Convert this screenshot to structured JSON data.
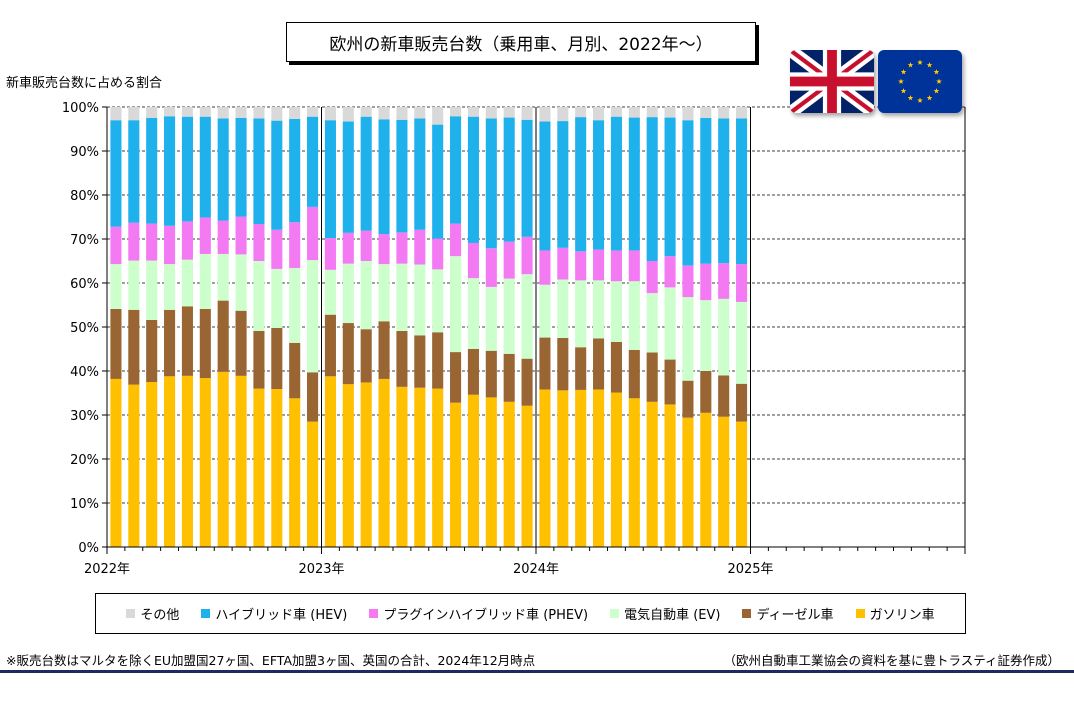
{
  "title": "欧州の新車販売台数（乗用車、月別、2022年～）",
  "ylabel": "新車販売台数に占める割合",
  "flags": {
    "left": "uk-flag",
    "right": "eu-flag"
  },
  "footnote_left": "※販売台数はマルタを除くEU加盟国27ヶ国、EFTA加盟3ヶ国、英国の合計、2024年12月時点",
  "footnote_right": "（欧州自動車工業協会の資料を基に豊トラスティ証券作成）",
  "legend": [
    {
      "name": "その他",
      "color": "#d9d9d9"
    },
    {
      "name": "ハイブリッド車 (HEV)",
      "color": "#1fb1ec"
    },
    {
      "name": "プラグインハイブリッド車 (PHEV)",
      "color": "#f47af4"
    },
    {
      "name": "電気自動車 (EV)",
      "color": "#ccffcc"
    },
    {
      "name": "ディーゼル車",
      "color": "#996633"
    },
    {
      "name": "ガソリン車",
      "color": "#ffc000"
    }
  ],
  "chart_data": {
    "type": "bar",
    "stacked": true,
    "title": "欧州の新車販売台数（乗用車、月別、2022年～）",
    "ylabel": "新車販売台数に占める割合",
    "xlabel": "",
    "ylim": [
      0,
      100
    ],
    "y_ticks": [
      "0%",
      "10%",
      "20%",
      "30%",
      "40%",
      "50%",
      "60%",
      "70%",
      "80%",
      "90%",
      "100%"
    ],
    "x_tick_labels": [
      "2022年",
      "2023年",
      "2024年",
      "2025年"
    ],
    "months_per_year": 12,
    "total_slots": 48,
    "grid": true,
    "legend_position": "bottom",
    "categories": [
      "2022-01",
      "2022-02",
      "2022-03",
      "2022-04",
      "2022-05",
      "2022-06",
      "2022-07",
      "2022-08",
      "2022-09",
      "2022-10",
      "2022-11",
      "2022-12",
      "2023-01",
      "2023-02",
      "2023-03",
      "2023-04",
      "2023-05",
      "2023-06",
      "2023-07",
      "2023-08",
      "2023-09",
      "2023-10",
      "2023-11",
      "2023-12",
      "2024-01",
      "2024-02",
      "2024-03",
      "2024-04",
      "2024-05",
      "2024-06",
      "2024-07",
      "2024-08",
      "2024-09",
      "2024-10",
      "2024-11",
      "2024-12"
    ],
    "series": [
      {
        "name": "ガソリン車",
        "color": "#ffc000",
        "values": [
          38.2,
          36.9,
          37.5,
          38.8,
          38.9,
          38.4,
          39.8,
          38.9,
          36.0,
          35.9,
          33.8,
          28.5,
          38.8,
          37.0,
          37.4,
          38.2,
          36.4,
          36.2,
          36.0,
          32.8,
          34.6,
          34.0,
          33.0,
          32.1,
          35.8,
          35.6,
          35.7,
          35.8,
          35.1,
          33.8,
          33.0,
          32.4,
          29.4,
          30.5,
          29.6,
          28.5
        ]
      },
      {
        "name": "ディーゼル車",
        "color": "#996633",
        "values": [
          15.9,
          17.0,
          14.1,
          15.1,
          15.8,
          15.7,
          16.2,
          14.8,
          13.1,
          13.9,
          12.6,
          11.2,
          14.0,
          13.9,
          12.1,
          13.1,
          12.7,
          11.9,
          12.8,
          11.5,
          10.4,
          10.6,
          10.9,
          10.7,
          11.8,
          11.9,
          9.7,
          11.6,
          11.5,
          11.0,
          11.2,
          10.2,
          8.4,
          9.5,
          9.4,
          8.6
        ]
      },
      {
        "name": "電気自動車 (EV)",
        "color": "#ccffcc",
        "values": [
          10.2,
          11.2,
          13.5,
          10.4,
          10.6,
          12.5,
          10.6,
          12.8,
          15.9,
          13.4,
          17.0,
          25.5,
          10.2,
          13.5,
          15.5,
          13.0,
          15.3,
          16.1,
          14.3,
          21.8,
          16.1,
          14.5,
          17.1,
          19.2,
          12.0,
          13.3,
          15.2,
          13.2,
          13.8,
          15.6,
          13.5,
          16.4,
          19.0,
          16.1,
          17.4,
          18.6
        ]
      },
      {
        "name": "プラグインハイブリッド車 (PHEV)",
        "color": "#f47af4",
        "values": [
          8.5,
          8.6,
          8.4,
          8.7,
          8.7,
          8.3,
          7.6,
          8.6,
          8.4,
          8.9,
          10.4,
          12.1,
          7.2,
          7.0,
          6.9,
          6.8,
          7.1,
          7.9,
          7.0,
          7.4,
          8.0,
          8.8,
          8.4,
          8.5,
          7.8,
          7.2,
          6.6,
          7.0,
          7.0,
          7.0,
          7.3,
          7.1,
          7.2,
          8.3,
          8.1,
          8.6
        ]
      },
      {
        "name": "ハイブリッド車 (HEV)",
        "color": "#1fb1ec",
        "values": [
          24.2,
          23.3,
          24.0,
          24.9,
          23.8,
          22.9,
          23.2,
          22.4,
          24.0,
          24.8,
          23.5,
          20.5,
          26.8,
          25.3,
          25.9,
          26.1,
          25.6,
          25.3,
          25.9,
          24.4,
          28.7,
          29.5,
          28.2,
          26.6,
          29.3,
          28.8,
          30.5,
          29.4,
          30.4,
          30.2,
          32.7,
          31.5,
          33.0,
          33.1,
          32.9,
          33.1
        ]
      },
      {
        "name": "その他",
        "color": "#d9d9d9",
        "values": [
          3.0,
          3.0,
          2.5,
          2.1,
          2.2,
          2.2,
          2.6,
          2.5,
          2.6,
          3.1,
          2.7,
          2.2,
          3.0,
          3.3,
          2.2,
          2.8,
          2.9,
          2.6,
          4.0,
          2.1,
          2.2,
          2.6,
          2.4,
          2.9,
          3.3,
          3.2,
          2.3,
          3.0,
          2.2,
          2.4,
          2.3,
          2.4,
          3.0,
          2.5,
          2.6,
          2.6
        ]
      }
    ]
  }
}
